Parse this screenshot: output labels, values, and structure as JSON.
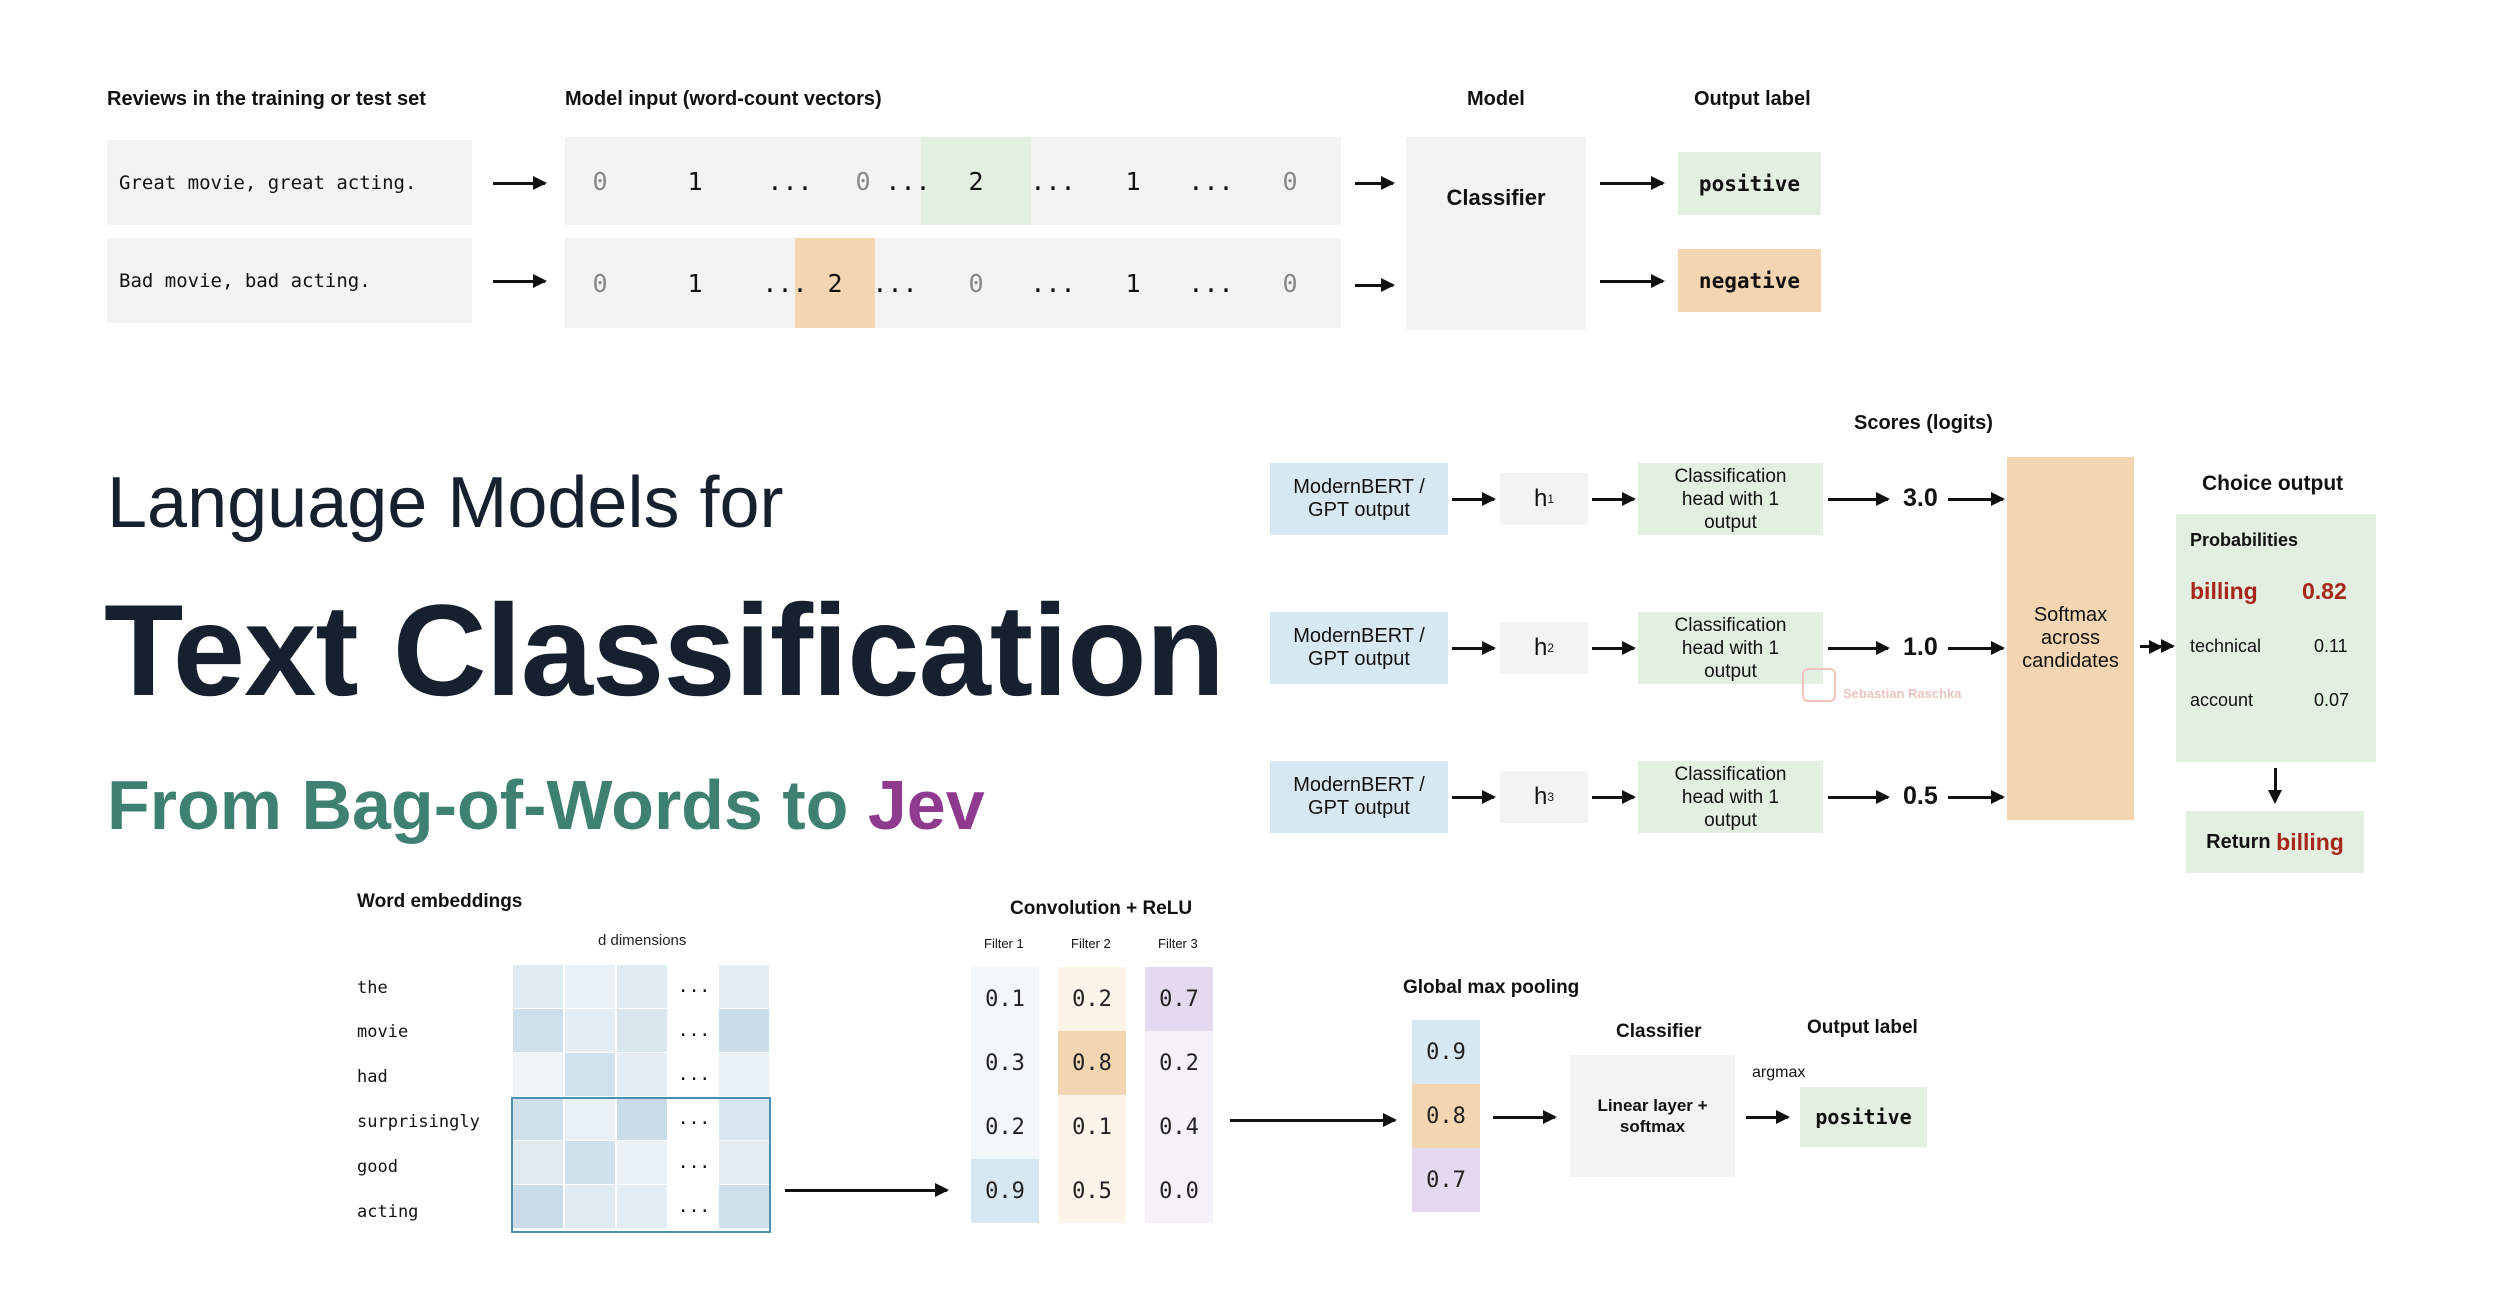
{
  "bow": {
    "col_reviews": "Reviews in the training or test set",
    "col_input": "Model input (word-count vectors)",
    "col_model": "Model",
    "col_output": "Output label",
    "reviews": [
      "Great movie, great acting.",
      "Bad movie, bad acting."
    ],
    "vectors": [
      [
        "0",
        "1",
        "...",
        "0",
        "...",
        "2",
        "...",
        "1",
        "...",
        "0"
      ],
      [
        "0",
        "1",
        "...",
        "2",
        "...",
        "0",
        "...",
        "1",
        "...",
        "0"
      ]
    ],
    "model_label": "Classifier",
    "labels": [
      "positive",
      "negative"
    ]
  },
  "title": {
    "line1": "Language Models for",
    "line2": "Text Classification",
    "line3a": "From Bag-of-Words to ",
    "line3b": "Jev"
  },
  "lm": {
    "scores_label": "Scores (logits)",
    "choice_label": "Choice output",
    "encoder": "ModernBERT / GPT output",
    "hidden": [
      "h",
      "h",
      "h"
    ],
    "hidden_sub": [
      "1",
      "2",
      "3"
    ],
    "head": "Classification head with 1 output",
    "scores": [
      "3.0",
      "1.0",
      "0.5"
    ],
    "softmax": "Softmax across candidates",
    "prob_title": "Probabilities",
    "probs": [
      {
        "label": "billing",
        "value": "0.82"
      },
      {
        "label": "technical",
        "value": "0.11"
      },
      {
        "label": "account",
        "value": "0.07"
      }
    ],
    "return_prefix": "Return ",
    "return_value": "billing",
    "watermark": "Sebastian Raschka"
  },
  "cnn": {
    "emb_title": "Word embeddings",
    "emb_dims": "d dimensions",
    "words": [
      "the",
      "movie",
      "had",
      "surprisingly",
      "good",
      "acting"
    ],
    "ellipsis": "...",
    "conv_title": "Convolution + ReLU",
    "filters": [
      {
        "name": "Filter 1",
        "values": [
          "0.1",
          "0.3",
          "0.2",
          "0.9"
        ]
      },
      {
        "name": "Filter 2",
        "values": [
          "0.2",
          "0.8",
          "0.1",
          "0.5"
        ]
      },
      {
        "name": "Filter 3",
        "values": [
          "0.7",
          "0.2",
          "0.4",
          "0.0"
        ]
      }
    ],
    "pool_title": "Global max pooling",
    "pool_values": [
      "0.9",
      "0.8",
      "0.7"
    ],
    "classifier_title": "Classifier",
    "classifier_body": "Linear layer + softmax",
    "output_title": "Output label",
    "argmax": "argmax",
    "output": "positive"
  },
  "colors": {
    "gray": "#f3f3f2",
    "green": "#e3efe1",
    "orange": "#f4d5b2",
    "blue": "#d7e8f3",
    "purple": "#e5d9f0",
    "title_dark": "#17202e",
    "title_teal": "#3f8170",
    "title_purple": "#8e3a8e",
    "accent_red": "#a8251a"
  }
}
